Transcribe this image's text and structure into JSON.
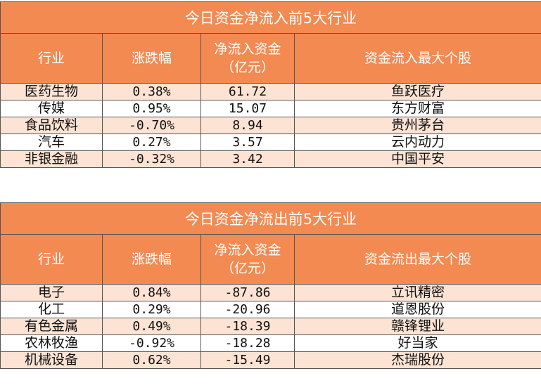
{
  "inflow": {
    "title": "今日资金净流入前5大行业",
    "headers": [
      "行业",
      "涨跌幅",
      "净流入资金\n（亿元）",
      "资金流入最大个股"
    ],
    "rows": [
      {
        "industry": "医药生物",
        "change": "0.38%",
        "net": "61.72",
        "stock": "鱼跃医疗"
      },
      {
        "industry": "传媒",
        "change": "0.95%",
        "net": "15.07",
        "stock": "东方财富"
      },
      {
        "industry": "食品饮料",
        "change": "-0.70%",
        "net": "8.94",
        "stock": "贵州茅台"
      },
      {
        "industry": "汽车",
        "change": "0.27%",
        "net": "3.57",
        "stock": "云内动力"
      },
      {
        "industry": "非银金融",
        "change": "-0.32%",
        "net": "3.42",
        "stock": "中国平安"
      }
    ]
  },
  "outflow": {
    "title": "今日资金净流出前5大行业",
    "headers": [
      "行业",
      "涨跌幅",
      "净流入资金\n（亿元）",
      "资金流出最大个股"
    ],
    "rows": [
      {
        "industry": "电子",
        "change": "0.84%",
        "net": "-87.86",
        "stock": "立讯精密"
      },
      {
        "industry": "化工",
        "change": "0.29%",
        "net": "-20.96",
        "stock": "道恩股份"
      },
      {
        "industry": "有色金属",
        "change": "0.49%",
        "net": "-18.39",
        "stock": "赣锋锂业"
      },
      {
        "industry": "农林牧渔",
        "change": "-0.92%",
        "net": "-18.28",
        "stock": "好当家"
      },
      {
        "industry": "机械设备",
        "change": "0.62%",
        "net": "-15.49",
        "stock": "杰瑞股份"
      }
    ]
  },
  "colors": {
    "header_bg": "#f28a52",
    "stripe": "#fde3d3"
  }
}
